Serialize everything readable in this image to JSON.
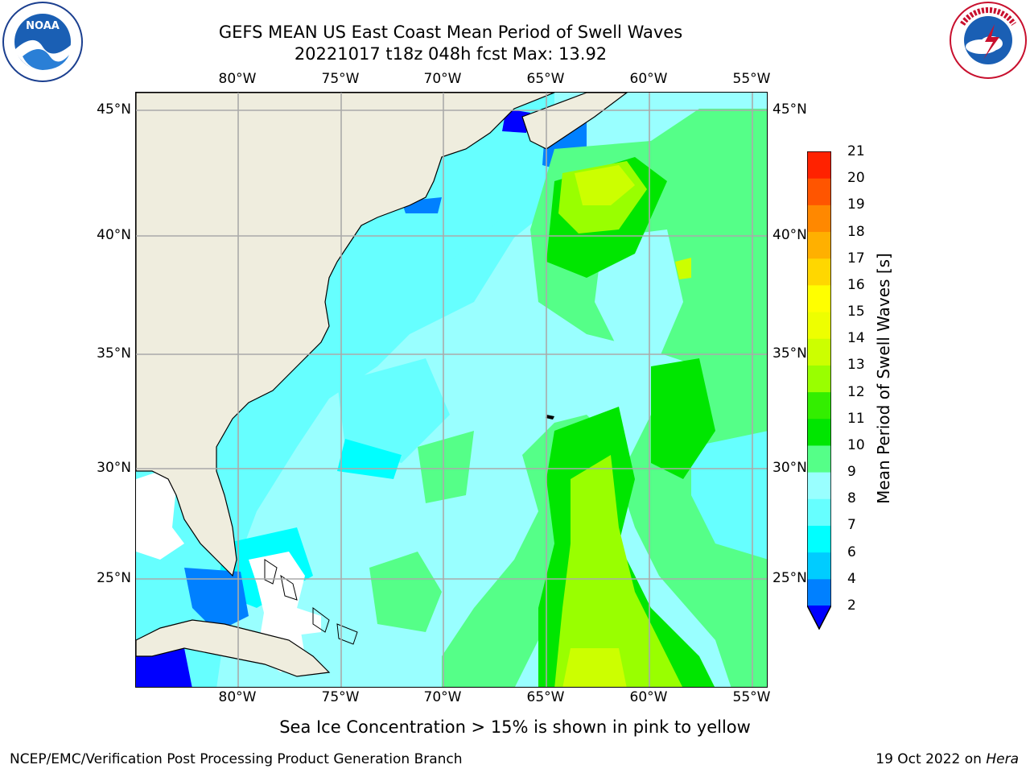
{
  "title_line1": "GEFS MEAN US East Coast Mean Period of Swell Waves",
  "title_line2": "20221017 t18z 048h fcst   Max: 13.92",
  "logos": {
    "left": "NOAA",
    "right": "NATIONAL WEATHER SERVICE"
  },
  "map": {
    "lon_labels": [
      "80°W",
      "75°W",
      "70°W",
      "65°W",
      "60°W",
      "55°W"
    ],
    "lat_labels": [
      "45°N",
      "40°N",
      "35°N",
      "30°N",
      "25°N"
    ],
    "colors": {
      "land": "#efedde",
      "missing": "#ffffff",
      "grid": "#aaaaaa",
      "coast": "#000000"
    }
  },
  "colorbar": {
    "label": "Mean Period of Swell Waves [s]",
    "ticks": [
      "2",
      "4",
      "6",
      "7",
      "8",
      "9",
      "10",
      "11",
      "12",
      "13",
      "14",
      "15",
      "16",
      "17",
      "18",
      "19",
      "20",
      "21"
    ],
    "colors": [
      "#0080ff",
      "#00ccff",
      "#00ffff",
      "#66ffff",
      "#99ffff",
      "#55ff88",
      "#00e600",
      "#33ee00",
      "#99ff00",
      "#ccff00",
      "#eeff00",
      "#ffff00",
      "#ffd700",
      "#ffb000",
      "#ff8800",
      "#ff5500",
      "#ff2200",
      "#ff0000"
    ],
    "extend_color": "#0000ff"
  },
  "bottom_note": "Sea Ice Concentration > 15% is shown in pink to yellow",
  "footer_left": "NCEP/EMC/Verification Post Processing Product Generation Branch",
  "footer_date": "19 Oct 2022 on",
  "footer_machine": "Hera"
}
